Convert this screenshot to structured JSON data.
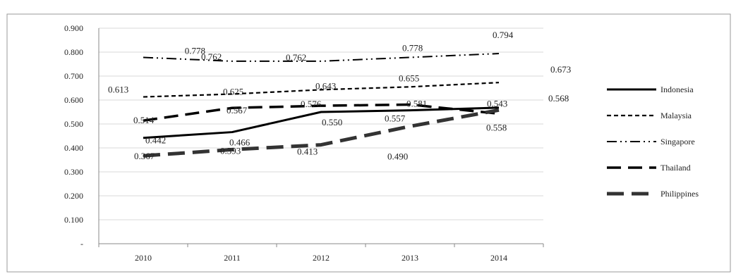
{
  "chart_data": {
    "type": "line",
    "title": "",
    "xlabel": "",
    "ylabel": "",
    "categories": [
      "2010",
      "2011",
      "2012",
      "2013",
      "2014"
    ],
    "ylim": [
      0,
      0.9
    ],
    "y_ticks": [
      "-",
      "0.100",
      "0.200",
      "0.300",
      "0.400",
      "0.500",
      "0.600",
      "0.700",
      "0.800",
      "0.900"
    ],
    "grid": true,
    "legend_position": "right",
    "series": [
      {
        "name": "Indonesia",
        "values": [
          0.442,
          0.466,
          0.55,
          0.557,
          0.568
        ],
        "labels": [
          "0.442",
          "0.466",
          "0.550",
          "0.557",
          "0.568"
        ],
        "style": "solid",
        "color": "#000000"
      },
      {
        "name": "Malaysia",
        "values": [
          0.613,
          0.625,
          0.643,
          0.655,
          0.673
        ],
        "labels": [
          "0.613",
          "0.625",
          "0.643",
          "0.655",
          "0.673"
        ],
        "style": "short-dash",
        "color": "#000000"
      },
      {
        "name": "Singapore",
        "values": [
          0.778,
          0.762,
          0.762,
          0.778,
          0.794
        ],
        "labels": [
          "0.778",
          "0.762",
          "0.762",
          "0.778",
          "0.794"
        ],
        "style": "dash-dot-dot",
        "color": "#000000"
      },
      {
        "name": "Thailand",
        "values": [
          0.514,
          0.567,
          0.576,
          0.581,
          0.543
        ],
        "labels": [
          "0.514",
          "0.567",
          "0.576",
          "0.581",
          "0.543"
        ],
        "style": "long-dash",
        "color": "#000000"
      },
      {
        "name": "Philippines",
        "values": [
          0.367,
          0.393,
          0.413,
          0.49,
          0.558
        ],
        "labels": [
          "0.367",
          "0.393",
          "0.413",
          "0.490",
          "0.558"
        ],
        "style": "heavy-dash",
        "color": "#333333"
      }
    ]
  }
}
